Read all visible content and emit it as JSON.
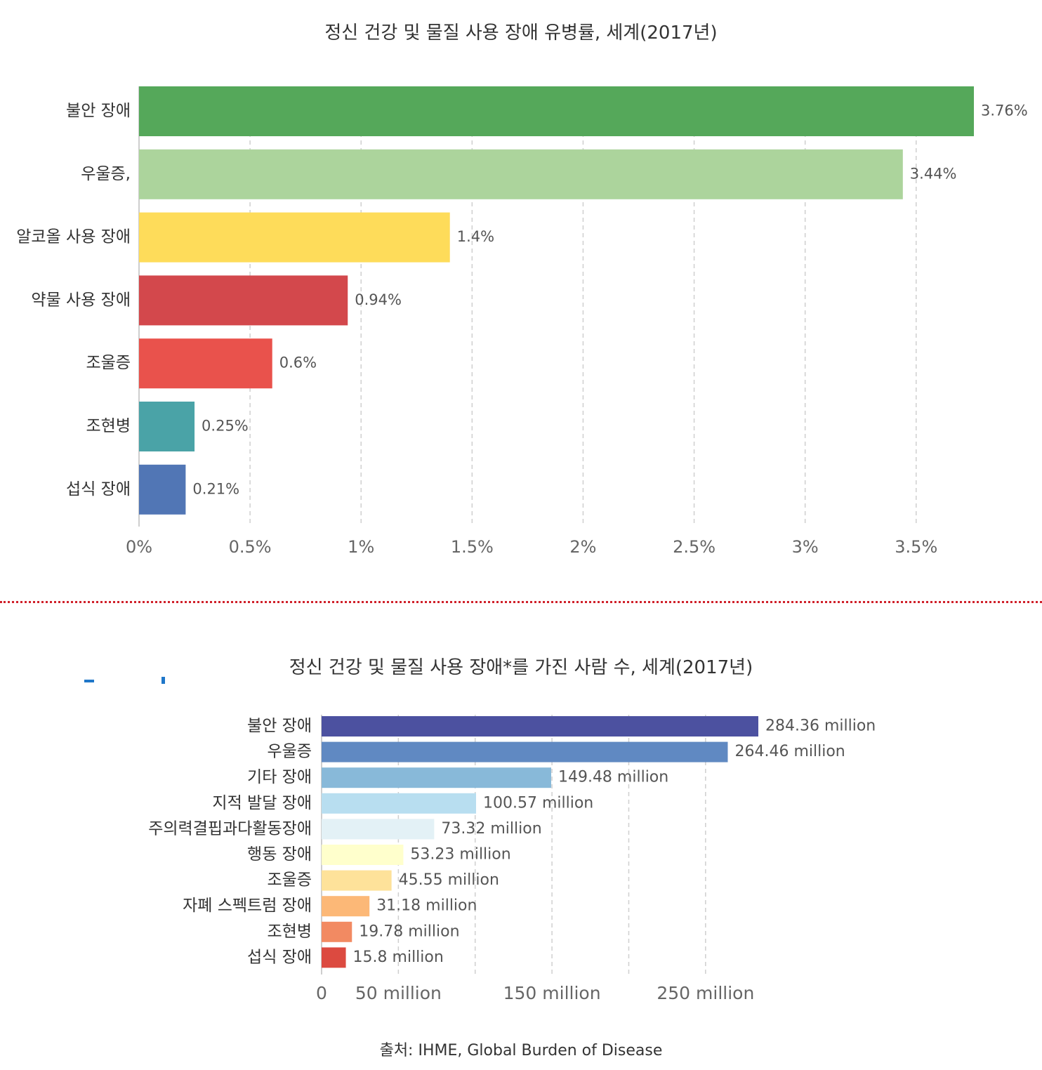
{
  "chart_data": [
    {
      "type": "bar",
      "orientation": "horizontal",
      "title": "정신 건강 및 물질 사용 장애 유병률, 세계(2017년)",
      "categories": [
        "불안 장애",
        "우울증,",
        "알코올 사용 장애",
        "약물 사용 장애",
        "조울증",
        "조현병",
        "섭식 장애"
      ],
      "values": [
        3.76,
        3.44,
        1.4,
        0.94,
        0.6,
        0.25,
        0.21
      ],
      "value_labels": [
        "3.76%",
        "3.44%",
        "1.4%",
        "0.94%",
        "0.6%",
        "0.25%",
        "0.21%"
      ],
      "colors": [
        "#55a85a",
        "#acd49c",
        "#fedc5a",
        "#d3484c",
        "#e9524c",
        "#4aa3a7",
        "#5176b5"
      ],
      "xlim": [
        0,
        3.76
      ],
      "x_ticks": [
        0,
        0.5,
        1,
        1.5,
        2,
        2.5,
        3,
        3.5
      ],
      "x_tick_labels": [
        "0%",
        "0.5%",
        "1%",
        "1.5%",
        "2%",
        "2.5%",
        "3%",
        "3.5%"
      ],
      "grid": true
    },
    {
      "type": "bar",
      "orientation": "horizontal",
      "title": "정신 건강 및 물질 사용 장애*를 가진 사람 수, 세계(2017년)",
      "categories": [
        "불안 장애",
        "우울증",
        "기타 장애",
        "지적 발달 장애",
        "주의력결핍과다활동장애",
        "행동 장애",
        "조울증",
        "자폐 스펙트럼 장애",
        "조현병",
        "섭식 장애"
      ],
      "values": [
        284.36,
        264.46,
        149.48,
        100.57,
        73.32,
        53.23,
        45.55,
        31.18,
        19.78,
        15.8
      ],
      "value_labels": [
        "284.36 million",
        "264.46 million",
        "149.48 million",
        "100.57 million",
        "73.32 million",
        "53.23 million",
        "45.55 million",
        "31.18 million",
        "19.78 million",
        "15.8 million"
      ],
      "colors": [
        "#4c51a0",
        "#6089c2",
        "#88b9d9",
        "#b8def0",
        "#e3f1f6",
        "#ffffcc",
        "#fee29a",
        "#fcb877",
        "#f28a62",
        "#dc4a40"
      ],
      "xlim": [
        0,
        284.36
      ],
      "x_ticks": [
        0,
        50,
        100,
        150,
        200,
        250
      ],
      "x_tick_labels": [
        "0",
        "50 million",
        "",
        "150 million",
        "",
        "250 million"
      ],
      "grid": true
    }
  ],
  "source": "출처: IHME, Global Burden of Disease"
}
